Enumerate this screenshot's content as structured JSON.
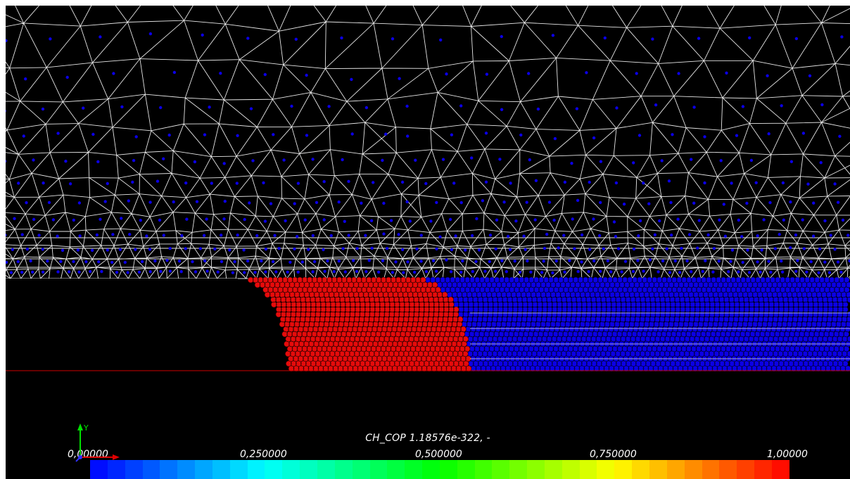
{
  "viewer": {
    "background": "#000000",
    "mesh_line_color": "#e6e6e6",
    "particle_low_color": "#0b00e6",
    "particle_high_color": "#e60b0b",
    "boundary_line_color": "#cc0000"
  },
  "legend": {
    "title": "CH_COP 1.18576e-322, -",
    "tick_labels": [
      "0,00000",
      "0,250000",
      "0,500000",
      "0,750000",
      "1,00000"
    ],
    "range": [
      0,
      1
    ],
    "colormap": "rainbow (blue to red)",
    "segments": 40
  },
  "axes_triad": {
    "y_label": "Y",
    "icons": [
      "y-axis-arrow-icon",
      "x-axis-arrow-icon",
      "z-axis-arrow-icon"
    ]
  }
}
